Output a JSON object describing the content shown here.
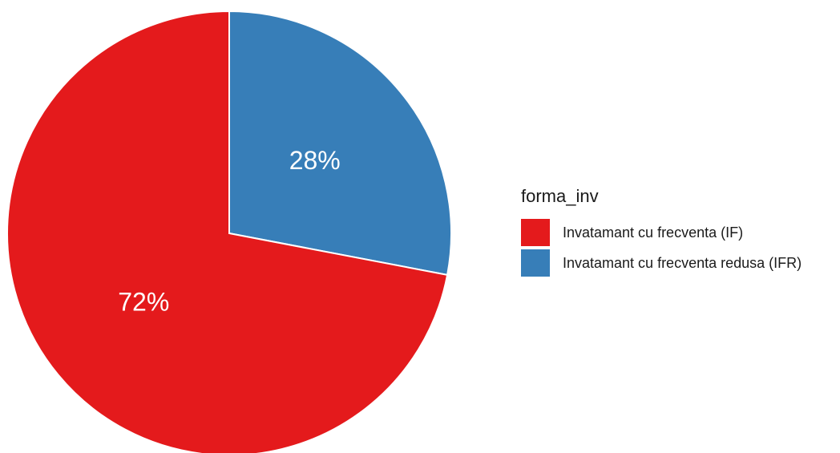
{
  "chart_data": {
    "type": "pie",
    "categories": [
      "Invatamant cu frecventa (IF)",
      "Invatamant cu frecventa redusa (IFR)"
    ],
    "values": [
      72,
      28
    ],
    "slice_labels": [
      "72%",
      "28%"
    ],
    "colors": [
      "#E41A1C",
      "#377EB8"
    ],
    "legend": {
      "title": "forma_inv",
      "placement": "right"
    },
    "title": "",
    "xlabel": "",
    "ylabel": ""
  }
}
